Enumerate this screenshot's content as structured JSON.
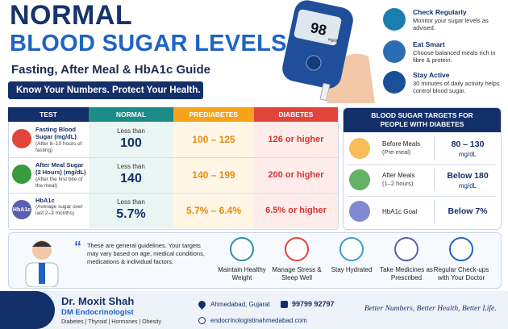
{
  "header": {
    "title_line1": "NORMAL",
    "title_line2": "BLOOD SUGAR LEVELS",
    "subtitle": "Fasting, After Meal & HbA1c Guide",
    "tagline": "Know Your Numbers. Protect Your Health."
  },
  "meter": {
    "reading": "98",
    "unit": "mg/dL"
  },
  "tips": [
    {
      "title": "Check Regularly",
      "text": "Monitor your sugar levels as advised."
    },
    {
      "title": "Eat Smart",
      "text": "Choose balanced meals rich in fibre & protein."
    },
    {
      "title": "Stay Active",
      "text": "30 minutes of daily activity helps control blood sugar."
    }
  ],
  "table": {
    "headers": [
      "TEST",
      "NORMAL",
      "PREDIABETES",
      "DIABETES"
    ],
    "rows": [
      {
        "test": "Fasting Blood Sugar (mg/dL)",
        "note": "(After 8–10 hours of fasting)",
        "normal_prefix": "Less than",
        "normal": "100",
        "prediabetes": "100 – 125",
        "diabetes": "126 or higher"
      },
      {
        "test": "After Meal Sugar (2 Hours) (mg/dL)",
        "note": "(After the first bite of the meal)",
        "normal_prefix": "Less than",
        "normal": "140",
        "prediabetes": "140 – 199",
        "diabetes": "200 or higher"
      },
      {
        "test": "HbA1c",
        "note": "(Average sugar over last 2–3 months)",
        "icon": "HbA1c",
        "normal_prefix": "Less than",
        "normal": "5.7%",
        "prediabetes": "5.7% – 6.4%",
        "diabetes": "6.5% or higher"
      }
    ]
  },
  "targets": {
    "title": "BLOOD SUGAR TARGETS FOR PEOPLE WITH DIABETES",
    "rows": [
      {
        "label": "Before Meals",
        "sub": "(Pre-meal)",
        "value": "80 – 130",
        "unit": "mg/dL"
      },
      {
        "label": "After Meals",
        "sub": "(1–2 hours)",
        "value": "Below 180",
        "unit": "mg/dL"
      },
      {
        "label": "HbA1c Goal",
        "value": "Below 7%"
      }
    ]
  },
  "note": "These are general guidelines. Your targets may vary based on age, medical conditions, medications & individual factors.",
  "habits": [
    "Maintain Healthy Weight",
    "Manage Stress & Sleep Well",
    "Stay Hydrated",
    "Take Medicines as Prescribed",
    "Regular Check-ups with Your Doctor"
  ],
  "footer": {
    "name": "Dr. Moxit Shah",
    "title": "DM Endocrinologist",
    "specialties": "Diabetes | Thyroid | Hormones | Obesity",
    "location": "Ahmedabad, Gujarat",
    "phone": "99799 92797",
    "website": "endocrinologistinahmedabad.com",
    "slogan": "Better Numbers, Better Health, Better Life."
  }
}
